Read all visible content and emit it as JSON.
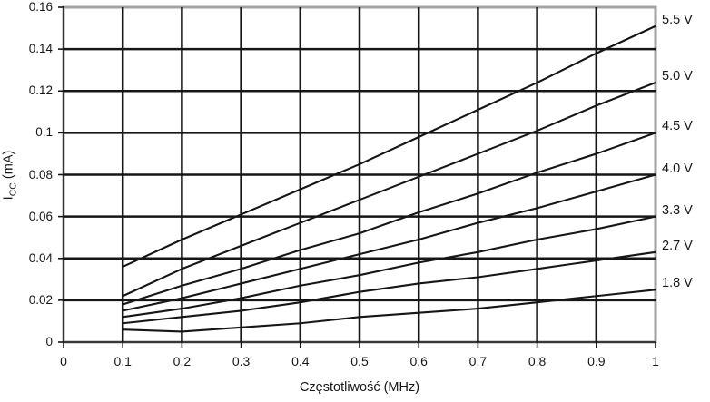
{
  "figure": {
    "background": "#ffffff",
    "text_color": "#161616",
    "line_color": "#161616",
    "grid_color": "#161616",
    "border_color": "#a3a3a3"
  },
  "chart_data": {
    "type": "line",
    "title": "",
    "xlabel": "Częstotliwość (MHz)",
    "ylabel": {
      "pre": "I",
      "sub": "CC",
      "post": " (mA)"
    },
    "xlim": [
      0,
      1
    ],
    "ylim": [
      0,
      0.16
    ],
    "grid": true,
    "legend_position": "right-of-line-ends",
    "x_ticks": [
      0,
      0.1,
      0.2,
      0.3,
      0.4,
      0.5,
      0.6,
      0.7,
      0.8,
      0.9,
      1
    ],
    "x_tick_labels": [
      "0",
      "0.1",
      "0.2",
      "0.3",
      "0.4",
      "0.5",
      "0.6",
      "0.7",
      "0.8",
      "0.9",
      "1"
    ],
    "y_ticks": [
      0,
      0.02,
      0.04,
      0.06,
      0.08,
      0.1,
      0.12,
      0.14,
      0.16
    ],
    "y_tick_labels": [
      "0",
      "0.02",
      "0.04",
      "0.06",
      "0.08",
      "0.1",
      "0.12",
      "0.14",
      "0.16"
    ],
    "x": [
      0.1,
      0.2,
      0.3,
      0.4,
      0.5,
      0.6,
      0.7,
      0.8,
      0.9,
      1.0
    ],
    "series": [
      {
        "name": "5.5 V",
        "values": [
          0.036,
          0.049,
          0.061,
          0.073,
          0.085,
          0.098,
          0.111,
          0.124,
          0.138,
          0.151
        ]
      },
      {
        "name": "5.0 V",
        "values": [
          0.022,
          0.035,
          0.046,
          0.057,
          0.068,
          0.079,
          0.09,
          0.101,
          0.113,
          0.124
        ]
      },
      {
        "name": "4.5 V",
        "values": [
          0.018,
          0.027,
          0.035,
          0.044,
          0.052,
          0.062,
          0.071,
          0.081,
          0.09,
          0.1
        ]
      },
      {
        "name": "4.0 V",
        "values": [
          0.015,
          0.021,
          0.028,
          0.035,
          0.042,
          0.049,
          0.057,
          0.064,
          0.072,
          0.08
        ]
      },
      {
        "name": "3.3 V",
        "values": [
          0.012,
          0.016,
          0.021,
          0.027,
          0.032,
          0.038,
          0.043,
          0.049,
          0.054,
          0.06
        ]
      },
      {
        "name": "2.7 V",
        "values": [
          0.009,
          0.012,
          0.015,
          0.019,
          0.024,
          0.028,
          0.031,
          0.035,
          0.039,
          0.043
        ]
      },
      {
        "name": "1.8 V",
        "values": [
          0.006,
          0.005,
          0.007,
          0.009,
          0.012,
          0.014,
          0.016,
          0.019,
          0.022,
          0.025
        ]
      }
    ]
  }
}
